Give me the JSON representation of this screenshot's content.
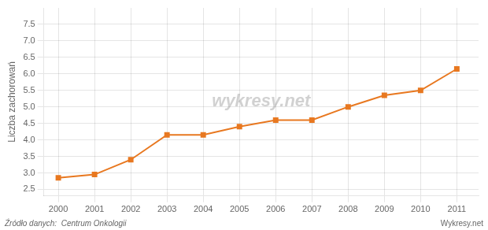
{
  "chart_data": {
    "type": "line",
    "ylabel": "Liczba zachorowań",
    "annotations": [
      "wykresy.net",
      "Źródło danych:  Centrum Onkologii",
      "Wykresy.net"
    ],
    "x": [
      2000,
      2001,
      2002,
      2003,
      2004,
      2005,
      2006,
      2007,
      2008,
      2009,
      2010,
      2011
    ],
    "values": [
      2.85,
      2.95,
      3.4,
      4.15,
      4.15,
      4.4,
      4.6,
      4.6,
      5.0,
      5.35,
      5.5,
      6.15
    ],
    "color": "#E87820",
    "marker": "square",
    "xlim": [
      1999.6,
      2011.6
    ],
    "xticks": [
      2000,
      2001,
      2002,
      2003,
      2004,
      2005,
      2006,
      2007,
      2008,
      2009,
      2010,
      2011
    ],
    "ylim": [
      2.3,
      8.0
    ],
    "yticks": [
      2.5,
      {
        "value": 3,
        "label": "3.0"
      },
      3.5,
      {
        "value": 4,
        "label": "4.0"
      },
      4.5,
      {
        "value": 5,
        "label": "5.0"
      },
      5.5,
      {
        "value": 6,
        "label": "6.0"
      },
      6.5,
      {
        "value": 7,
        "label": "7.0"
      },
      7.5
    ],
    "grid": true
  }
}
